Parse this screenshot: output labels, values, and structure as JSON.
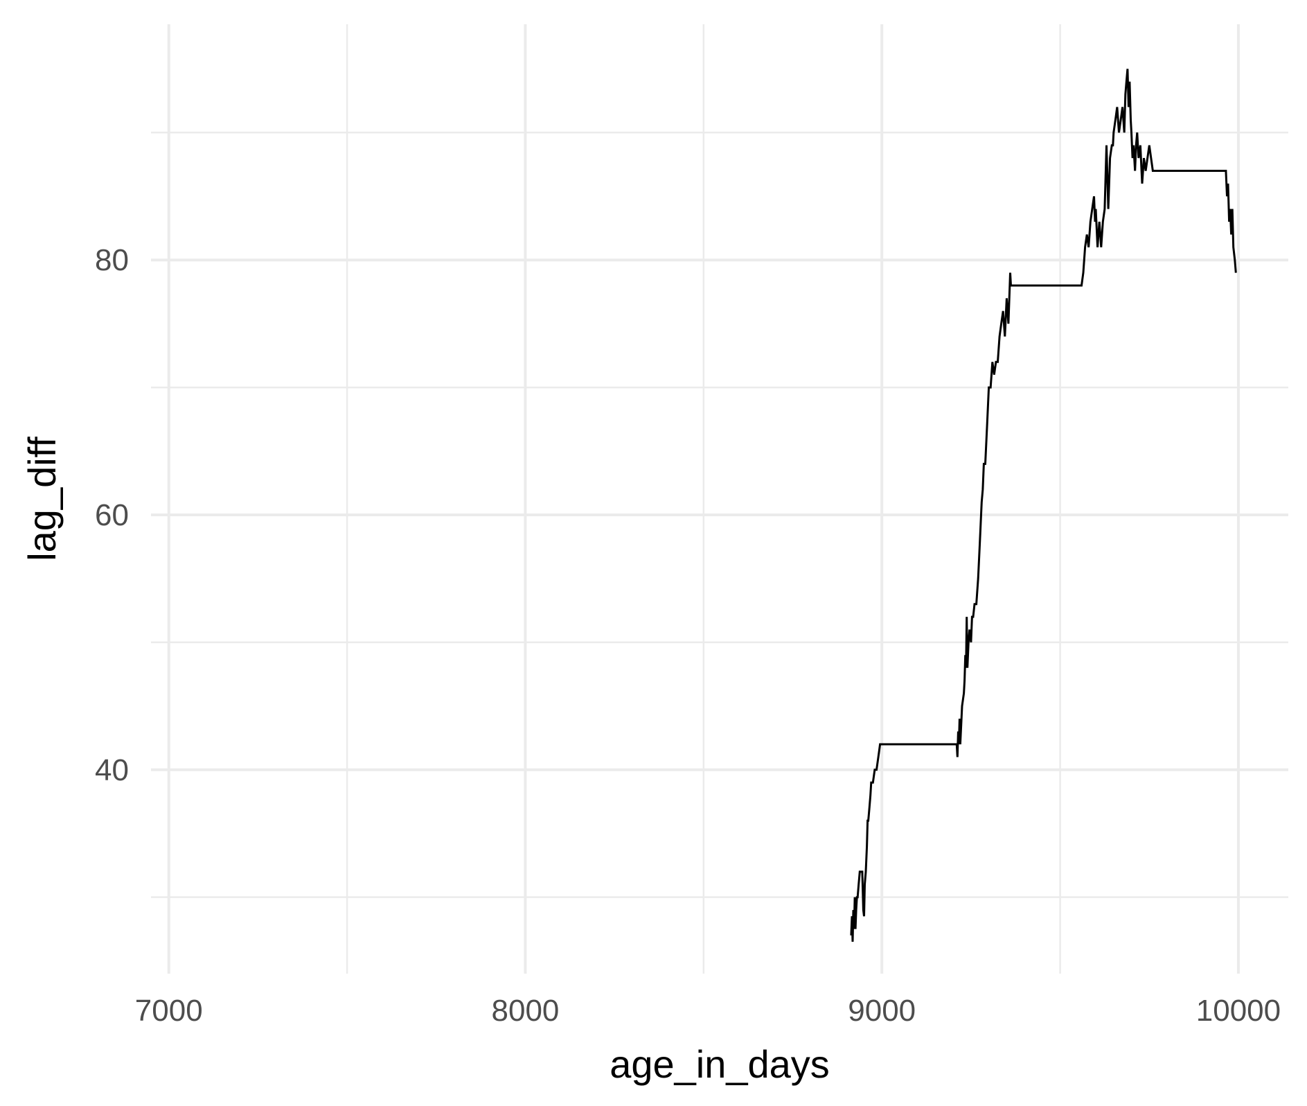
{
  "chart_data": {
    "type": "line",
    "title": "",
    "xlabel": "age_in_days",
    "ylabel": "lag_diff",
    "xlim": [
      6950,
      10140
    ],
    "ylim": [
      24,
      98.5
    ],
    "x_ticks_major": [
      7000,
      8000,
      9000,
      10000
    ],
    "x_ticks_minor": [
      7500,
      8500,
      9500
    ],
    "y_ticks_major": [
      40,
      60,
      80
    ],
    "y_ticks_minor": [
      30,
      50,
      70,
      90
    ],
    "grid": true,
    "legend": "none",
    "line_color": "#000000",
    "series": [
      {
        "x": [
          8914,
          8916,
          8918,
          8920,
          8922,
          8924,
          8926,
          8928,
          8930,
          8932,
          8935,
          8938,
          8940,
          8945,
          8948,
          8950,
          8952,
          8955,
          8958,
          8960,
          8962,
          8965,
          8968,
          8970,
          8975,
          8980,
          8985,
          8990,
          8995,
          9000,
          9050,
          9100,
          9150,
          9200,
          9210,
          9212,
          9214,
          9216,
          9218,
          9220,
          9225,
          9230,
          9232,
          9234,
          9236,
          9238,
          9240,
          9243,
          9246,
          9250,
          9253,
          9256,
          9260,
          9265,
          9270,
          9275,
          9280,
          9283,
          9286,
          9290,
          9295,
          9300,
          9305,
          9310,
          9315,
          9320,
          9325,
          9330,
          9335,
          9340,
          9345,
          9350,
          9355,
          9360,
          9362,
          9364,
          9366,
          9370,
          9400,
          9450,
          9500,
          9540,
          9560,
          9565,
          9570,
          9575,
          9580,
          9585,
          9590,
          9595,
          9598,
          9600,
          9605,
          9610,
          9615,
          9620,
          9625,
          9630,
          9635,
          9640,
          9645,
          9648,
          9650,
          9655,
          9660,
          9665,
          9670,
          9675,
          9680,
          9683,
          9686,
          9689,
          9692,
          9695,
          9698,
          9700,
          9703,
          9706,
          9710,
          9713,
          9716,
          9720,
          9725,
          9730,
          9735,
          9740,
          9745,
          9750,
          9760,
          9800,
          9850,
          9900,
          9960,
          9965,
          9968,
          9971,
          9974,
          9977,
          9980,
          9983,
          9986,
          9990,
          9993
        ],
        "y": [
          27,
          28.5,
          26.5,
          29,
          27.5,
          30,
          27.5,
          29,
          30,
          30,
          31,
          32,
          32,
          32,
          29,
          28.5,
          31,
          32,
          34,
          36,
          36,
          37,
          38,
          39,
          39,
          40,
          40,
          41,
          42,
          42,
          42,
          42,
          42,
          42,
          42,
          41,
          43,
          42,
          44,
          42,
          45,
          46,
          47,
          49,
          48,
          52,
          48,
          50,
          51,
          50,
          52,
          52,
          53,
          53,
          55,
          58,
          61,
          62,
          64,
          64,
          67,
          70,
          70,
          72,
          71,
          72,
          72,
          74,
          75,
          76,
          74,
          77,
          75,
          79,
          78,
          78,
          78,
          78,
          78,
          78,
          78,
          78,
          78,
          79,
          81,
          82,
          81,
          83,
          84,
          85,
          83,
          84,
          81,
          83,
          81,
          83,
          84,
          89,
          84,
          88,
          89,
          89,
          90,
          91,
          92,
          90,
          91,
          92,
          90,
          93,
          94,
          95,
          92,
          94,
          91,
          90,
          88,
          89,
          87,
          89,
          90,
          88,
          89,
          86,
          88,
          87,
          88,
          89,
          87,
          87,
          87,
          87,
          87,
          87,
          85,
          86,
          83,
          84,
          82,
          84,
          81,
          80,
          79
        ]
      }
    ]
  }
}
